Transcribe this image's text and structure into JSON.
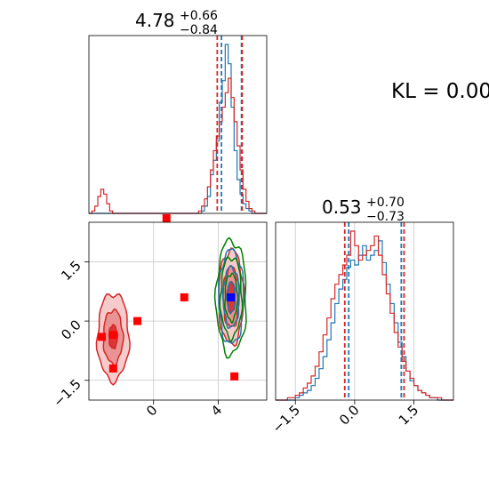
{
  "chart_data": {
    "type": "corner",
    "annotation": "KL = 0.00",
    "colors": {
      "hist_a": "#1f77b4",
      "hist_b": "#d62728",
      "contour_extra": "#008000",
      "marker_truth": "#0000ff",
      "marker_other": "#ff0000"
    },
    "panels": [
      {
        "id": "marginal-param-1",
        "type": "histogram",
        "title_value": "4.78",
        "title_plus": "+0.66",
        "title_minus": "−0.84",
        "xlim": [
          -4.0,
          7.0
        ],
        "bins": [
          -4.0,
          7.0,
          60
        ],
        "series": [
          {
            "name": "",
            "color": "#1f77b4",
            "values": [
              0,
              0,
              0,
              0,
              0,
              0,
              0,
              0,
              0,
              0,
              0,
              0,
              0,
              0,
              0,
              0,
              0,
              0,
              0,
              0,
              0,
              0,
              0,
              0,
              0,
              0,
              0,
              0,
              0,
              0,
              0,
              0,
              0,
              0,
              0,
              0,
              0,
              0,
              1,
              3,
              7,
              16,
              22,
              30,
              46,
              55,
              70,
              62,
              44,
              26,
              14,
              8,
              4,
              2,
              1,
              0,
              0,
              0,
              0,
              0
            ]
          },
          {
            "name": "",
            "color": "#d62728",
            "values": [
              0,
              1,
              3,
              7,
              10,
              8,
              4,
              1,
              0,
              0,
              0,
              0,
              0,
              0,
              0,
              0,
              0,
              0,
              0,
              0,
              0,
              0,
              0,
              0,
              0,
              0,
              0,
              0,
              0,
              0,
              0,
              0,
              0,
              0,
              0,
              0,
              0,
              1,
              3,
              6,
              11,
              18,
              26,
              32,
              38,
              44,
              50,
              56,
              48,
              38,
              28,
              18,
              10,
              5,
              2,
              1,
              0,
              0,
              0,
              0
            ]
          }
        ],
        "quantile_lines": [
          {
            "x": 3.94,
            "color": "#d62728"
          },
          {
            "x": 4.2,
            "color": "#1f77b4"
          },
          {
            "x": 5.44,
            "color": "#1f77b4"
          },
          {
            "x": 5.48,
            "color": "#d62728"
          }
        ]
      },
      {
        "id": "joint-param-1-2",
        "type": "contour",
        "xlim": [
          -4.0,
          7.0
        ],
        "ylim": [
          -2.0,
          2.5
        ],
        "xticks": [
          0,
          4
        ],
        "xtick_labels": [
          "0",
          "4"
        ],
        "yticks": [
          -1.5,
          0.0,
          1.5
        ],
        "ytick_labels": [
          "−1.5",
          "0.0",
          "1.5"
        ],
        "contour_clusters": [
          {
            "center": [
              -2.5,
              -0.4
            ],
            "color": "#d62728",
            "levels": [
              0.35,
              0.8,
              1.3
            ]
          },
          {
            "center": [
              4.8,
              0.6
            ],
            "color": "#d62728",
            "levels": [
              0.45,
              0.9,
              1.4
            ]
          },
          {
            "center": [
              4.8,
              0.6
            ],
            "color": "#1f77b4",
            "levels": [
              0.45,
              0.9,
              1.4
            ]
          },
          {
            "center": [
              4.8,
              0.6
            ],
            "color": "#008000",
            "levels": [
              0.7,
              1.2,
              1.7
            ]
          }
        ],
        "markers": [
          {
            "x": 4.78,
            "y": 0.6,
            "color": "#0000ff",
            "shape": "square"
          },
          {
            "x": -3.2,
            "y": -0.4,
            "color": "#ff0000",
            "shape": "square"
          },
          {
            "x": -2.5,
            "y": -0.35,
            "color": "#ff0000",
            "shape": "square"
          },
          {
            "x": -2.5,
            "y": -1.2,
            "color": "#ff0000",
            "shape": "square"
          },
          {
            "x": -1.0,
            "y": 0.0,
            "color": "#ff0000",
            "shape": "square"
          },
          {
            "x": 1.9,
            "y": 0.6,
            "color": "#ff0000",
            "shape": "square"
          },
          {
            "x": 5.0,
            "y": -1.4,
            "color": "#ff0000",
            "shape": "square"
          },
          {
            "x": 0.8,
            "y": 2.6,
            "color": "#ff0000",
            "shape": "square"
          }
        ]
      },
      {
        "id": "marginal-param-2",
        "type": "histogram",
        "title_value": "0.53",
        "title_plus": "+0.70",
        "title_minus": "−0.73",
        "xlim": [
          -2.0,
          2.5
        ],
        "bins": [
          -2.0,
          2.5,
          45
        ],
        "xticks": [
          -1.5,
          0.0,
          1.5
        ],
        "xtick_labels": [
          "−1.5",
          "0.0",
          "1.5"
        ],
        "series": [
          {
            "name": "",
            "color": "#1f77b4",
            "values": [
              0,
              0,
              0,
              0,
              0,
              1,
              2,
              3,
              4,
              6,
              9,
              13,
              18,
              25,
              32,
              40,
              46,
              50,
              55,
              58,
              56,
              60,
              64,
              58,
              60,
              62,
              66,
              57,
              48,
              40,
              32,
              24,
              18,
              12,
              8,
              6,
              4,
              3,
              2,
              1,
              1,
              0,
              0,
              0,
              0
            ]
          },
          {
            "name": "",
            "color": "#d62728",
            "values": [
              0,
              0,
              0,
              1,
              1,
              2,
              3,
              5,
              7,
              10,
              14,
              20,
              27,
              34,
              42,
              48,
              52,
              56,
              60,
              70,
              64,
              58,
              60,
              62,
              64,
              68,
              60,
              52,
              44,
              36,
              28,
              22,
              16,
              12,
              9,
              6,
              4,
              3,
              2,
              1,
              1,
              1,
              0,
              0,
              0
            ]
          }
        ],
        "quantile_lines": [
          {
            "x": -0.25,
            "color": "#d62728"
          },
          {
            "x": -0.15,
            "color": "#1f77b4"
          },
          {
            "x": 1.18,
            "color": "#1f77b4"
          },
          {
            "x": 1.25,
            "color": "#d62728"
          }
        ]
      }
    ]
  }
}
